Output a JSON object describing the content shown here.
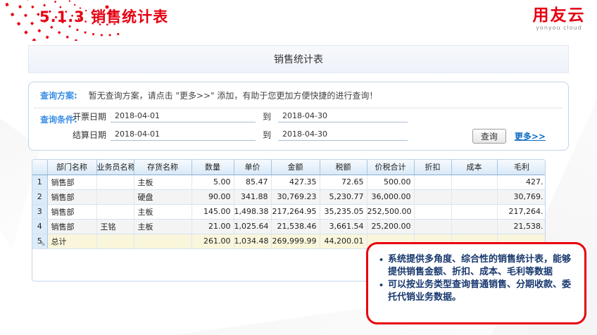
{
  "slide": {
    "title": "5.1.3  销售统计表",
    "logo": {
      "text": "用友云",
      "subtext": "yonyou cloud"
    }
  },
  "report": {
    "title": "销售统计表",
    "query_plan": {
      "label": "查询方案:",
      "message": "暂无查询方案，请点击 \"更多>>\" 添加，有助于您更加方便快捷的进行查询！"
    },
    "query_conditions": {
      "label": "查询条件:",
      "rows": [
        {
          "field": "开票日期",
          "from": "2018-04-01",
          "to_label": "到",
          "to": "2018-04-30"
        },
        {
          "field": "结算日期",
          "from": "2018-04-01",
          "to_label": "到",
          "to": "2018-04-30"
        }
      ],
      "query_button": "查询",
      "more_link": "更多>>"
    },
    "table": {
      "headers": [
        "",
        "部门名称",
        "业务员名称",
        "存货名称",
        "数量",
        "单价",
        "金额",
        "税额",
        "价税合计",
        "折扣",
        "成本",
        "毛利"
      ],
      "rows": [
        {
          "num": "1",
          "total": false,
          "cells": [
            "销售部",
            "",
            "主板",
            "5.00",
            "85.47",
            "427.35",
            "72.65",
            "500.00",
            "",
            "",
            "427."
          ]
        },
        {
          "num": "2",
          "total": false,
          "cells": [
            "销售部",
            "",
            "硬盘",
            "90.00",
            "341.88",
            "30,769.23",
            "5,230.77",
            "36,000.00",
            "",
            "",
            "30,769."
          ]
        },
        {
          "num": "3",
          "total": false,
          "cells": [
            "销售部",
            "",
            "主板",
            "145.00",
            "1,498.38",
            "217,264.95",
            "35,235.05",
            "252,500.00",
            "",
            "",
            "217,264."
          ]
        },
        {
          "num": "4",
          "total": false,
          "cells": [
            "销售部",
            "王铭",
            "主板",
            "21.00",
            "1,025.64",
            "21,538.46",
            "3,661.54",
            "25,200.00",
            "",
            "",
            "21,538."
          ]
        },
        {
          "num": "5",
          "total": true,
          "cells": [
            "总计",
            "",
            "",
            "261.00",
            "1,034.48",
            "269,999.99",
            "44,200.01",
            "",
            "",
            "",
            ""
          ]
        }
      ]
    }
  },
  "callout": {
    "bullets": [
      "系统提供多角度、综合性的销售统计表，能够提供销售金额、折扣、成本、毛利等数据",
      "可以按业务类型查询普通销售、分期收款、委托代销业务数据。"
    ]
  },
  "icons": {
    "edit_pencil": "✎"
  },
  "colors": {
    "brand_red": "#E60012",
    "label_blue": "#3A8EE6",
    "link_blue": "#0B6BC2",
    "callout_border": "#E8000D",
    "callout_text": "#17376E",
    "total_row_bg": "#FAF6DC",
    "grid_header_border": "#86AFD4"
  }
}
